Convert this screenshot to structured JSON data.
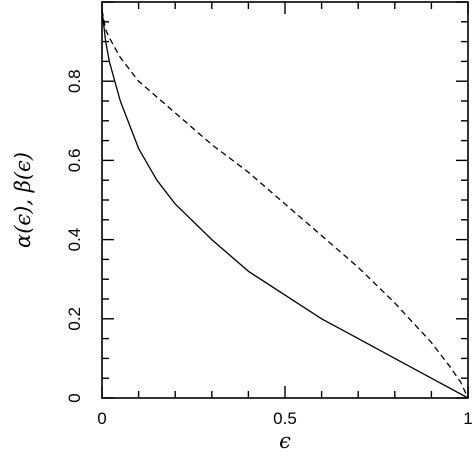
{
  "chart_data": {
    "type": "line",
    "xlabel": "ϵ",
    "ylabel": "α(ϵ), β(ϵ)",
    "xlim": [
      0,
      1
    ],
    "ylim": [
      0,
      1
    ],
    "x_ticks": [
      "0",
      "0.5",
      "1"
    ],
    "y_ticks": [
      "0",
      "0.2",
      "0.4",
      "0.6",
      "0.8"
    ],
    "x_tick_values": [
      0,
      0.5,
      1
    ],
    "y_tick_values": [
      0,
      0.2,
      0.4,
      0.6,
      0.8
    ],
    "grid": false,
    "series": [
      {
        "style": "solid",
        "x": [
          0,
          0.01,
          0.02,
          0.05,
          0.1,
          0.15,
          0.2,
          0.3,
          0.4,
          0.5,
          0.6,
          0.7,
          0.8,
          0.9,
          1.0
        ],
        "y": [
          0.98,
          0.9,
          0.85,
          0.75,
          0.63,
          0.55,
          0.49,
          0.4,
          0.32,
          0.26,
          0.2,
          0.15,
          0.1,
          0.05,
          0.0
        ]
      },
      {
        "style": "dashed",
        "x": [
          0,
          0.01,
          0.02,
          0.05,
          0.1,
          0.2,
          0.3,
          0.4,
          0.5,
          0.6,
          0.7,
          0.8,
          0.9,
          0.95,
          0.98,
          1.0
        ],
        "y": [
          0.98,
          0.93,
          0.91,
          0.86,
          0.8,
          0.72,
          0.64,
          0.57,
          0.49,
          0.41,
          0.33,
          0.24,
          0.14,
          0.08,
          0.04,
          0.0
        ]
      }
    ]
  }
}
